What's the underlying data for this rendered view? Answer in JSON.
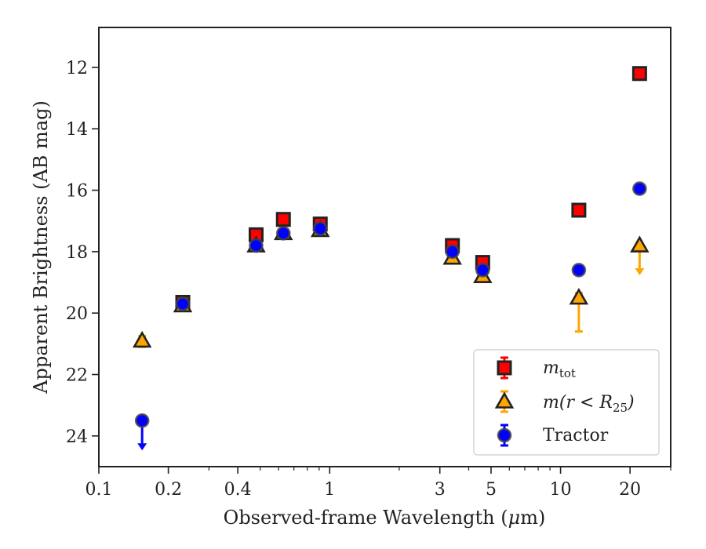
{
  "chart_data": {
    "type": "scatter",
    "xlabel_prefix": "Observed-frame Wavelength (",
    "xlabel_unit_mu": "μ",
    "xlabel_unit_rest": "m)",
    "ylabel": "Apparent Brightness (AB mag)",
    "x_scale": "log",
    "xlim": [
      0.1,
      30
    ],
    "ylim": [
      25,
      10.7
    ],
    "y_inverted": true,
    "x_major_ticks": [
      0.1,
      0.2,
      0.4,
      1,
      3,
      5,
      10,
      20
    ],
    "x_major_tick_labels": [
      "0.1",
      "0.2",
      "0.4",
      "1",
      "3",
      "5",
      "10",
      "20"
    ],
    "y_ticks": [
      12,
      14,
      16,
      18,
      20,
      22,
      24
    ],
    "y_tick_labels": [
      "12",
      "14",
      "16",
      "18",
      "20",
      "22",
      "24"
    ],
    "grid": false,
    "legend_position": "lower-right",
    "series": [
      {
        "key": "mtot",
        "legend_base": "m",
        "legend_sub": "tot",
        "marker": "square",
        "fill": "#ff0000",
        "edge": "#222222",
        "errcolor": "#ff0000",
        "points": [
          {
            "x": 0.231,
            "y": 19.65
          },
          {
            "x": 0.48,
            "y": 17.45
          },
          {
            "x": 0.63,
            "y": 16.95
          },
          {
            "x": 0.91,
            "y": 17.1
          },
          {
            "x": 3.4,
            "y": 17.8
          },
          {
            "x": 4.6,
            "y": 18.35
          },
          {
            "x": 12.0,
            "y": 16.65
          },
          {
            "x": 22.0,
            "y": 12.2
          }
        ]
      },
      {
        "key": "mr25",
        "legend_base": "m(r < R",
        "legend_sub": "25",
        "legend_close": ")",
        "marker": "triangle",
        "fill": "#ffa500",
        "edge": "#222222",
        "errcolor": "#ffa500",
        "points": [
          {
            "x": 0.154,
            "y": 20.9,
            "err_lo": 0.2,
            "err_hi": 0.15
          },
          {
            "x": 0.231,
            "y": 19.75
          },
          {
            "x": 0.48,
            "y": 17.8
          },
          {
            "x": 0.63,
            "y": 17.4
          },
          {
            "x": 0.91,
            "y": 17.3
          },
          {
            "x": 3.4,
            "y": 18.2
          },
          {
            "x": 4.6,
            "y": 18.8
          },
          {
            "x": 12.0,
            "y": 19.5,
            "err_lo": 1.1,
            "err_hi": 0.15
          },
          {
            "x": 22.0,
            "y": 17.8,
            "upper_limit": true
          }
        ]
      },
      {
        "key": "tractor",
        "legend_label": "Tractor",
        "marker": "circle",
        "fill": "#0000ff",
        "edge": "#444444",
        "errcolor": "#0000ff",
        "points": [
          {
            "x": 0.154,
            "y": 23.5,
            "upper_limit": true
          },
          {
            "x": 0.231,
            "y": 19.7
          },
          {
            "x": 0.48,
            "y": 17.8
          },
          {
            "x": 0.63,
            "y": 17.4
          },
          {
            "x": 0.91,
            "y": 17.25
          },
          {
            "x": 3.4,
            "y": 18.0
          },
          {
            "x": 4.6,
            "y": 18.6
          },
          {
            "x": 12.0,
            "y": 18.6
          },
          {
            "x": 22.0,
            "y": 15.95
          }
        ]
      }
    ]
  }
}
